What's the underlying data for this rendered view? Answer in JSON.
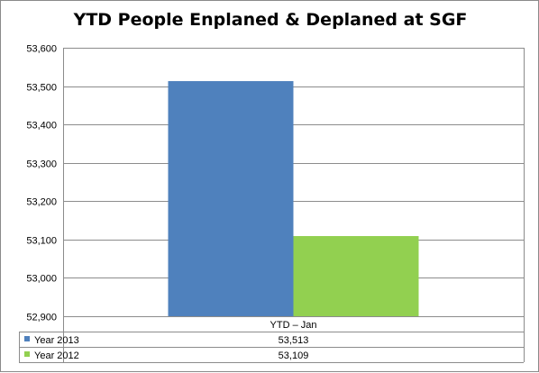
{
  "chart_data": {
    "type": "bar",
    "title": "YTD People Enplaned & Deplaned at SGF",
    "categories": [
      "YTD – Jan"
    ],
    "series": [
      {
        "name": "Year 2013",
        "values": [
          53513
        ],
        "color": "#4f81bd"
      },
      {
        "name": "Year 2012",
        "values": [
          53109
        ],
        "color": "#92d050"
      }
    ],
    "ylim": [
      52900,
      53600
    ],
    "yticks": [
      52900,
      53000,
      53100,
      53200,
      53300,
      53400,
      53500,
      53600
    ],
    "ytick_labels": [
      "52,900",
      "53,000",
      "53,100",
      "53,200",
      "53,300",
      "53,400",
      "53,500",
      "53,600"
    ],
    "grid": true,
    "legend": "data-table",
    "data_table": [
      {
        "series": "Year 2013",
        "value": "53,513"
      },
      {
        "series": "Year 2012",
        "value": "53,109"
      }
    ]
  }
}
